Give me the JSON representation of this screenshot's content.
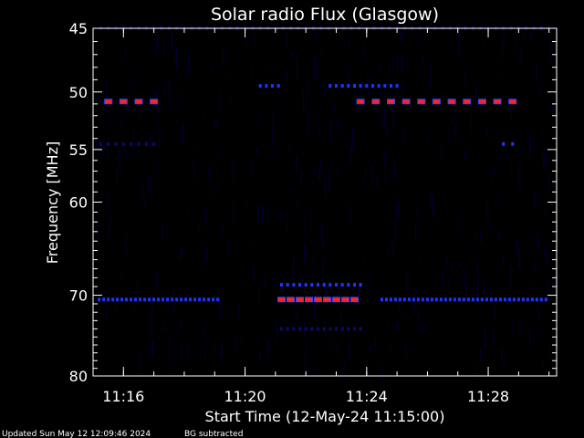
{
  "chart_data": {
    "type": "heatmap",
    "title": "Solar radio Flux (Glasgow)",
    "xlabel": "Start Time (12-May-24 11:15:00)",
    "ylabel": "Frequency [MHz]",
    "x_axis": {
      "unit": "minutes since 11:15:00",
      "range": [
        0,
        15.25
      ],
      "ticks": [
        {
          "value": 1,
          "label": "11:16"
        },
        {
          "value": 5,
          "label": "11:20"
        },
        {
          "value": 9,
          "label": "11:24"
        },
        {
          "value": 13,
          "label": "11:28"
        }
      ]
    },
    "y_axis": {
      "scale": "log",
      "inverted": true,
      "range": [
        45,
        80
      ],
      "ticks": [
        {
          "value": 45,
          "label": "45"
        },
        {
          "value": 50,
          "label": "50"
        },
        {
          "value": 55,
          "label": "55"
        },
        {
          "value": 60,
          "label": "60"
        },
        {
          "value": 70,
          "label": "70"
        },
        {
          "value": 80,
          "label": "80"
        }
      ],
      "minor_ticks": [
        46,
        47,
        48,
        49,
        51,
        52,
        53,
        54,
        56,
        57,
        58,
        59,
        61,
        62,
        63,
        64,
        65,
        66,
        67,
        68,
        69,
        71,
        72,
        73,
        74,
        75,
        76,
        77,
        78,
        79
      ]
    },
    "colors": {
      "background": "#000000",
      "axes": "#ffffff",
      "low": "#0a0a6e",
      "medium": "#2233ff",
      "high": "#ff2222"
    },
    "bands": [
      {
        "freq": 50.8,
        "intensity": "high",
        "x_start": 0.0,
        "x_end": 2.0,
        "step": 0.5
      },
      {
        "freq": 50.8,
        "intensity": "high",
        "x_start": 8.8,
        "x_end": 13.8,
        "step": 0.5
      },
      {
        "freq": 70.5,
        "intensity": "high",
        "x_start": 6.2,
        "x_end": 8.8,
        "step": 0.3
      },
      {
        "freq": 70.5,
        "intensity": "medium",
        "x_start": 0.2,
        "x_end": 4.2,
        "step": 0.15
      },
      {
        "freq": 70.5,
        "intensity": "medium",
        "x_start": 9.5,
        "x_end": 15.0,
        "step": 0.15
      },
      {
        "freq": 68.8,
        "intensity": "medium",
        "x_start": 6.2,
        "x_end": 8.8,
        "step": 0.2
      },
      {
        "freq": 49.5,
        "intensity": "medium",
        "x_start": 5.5,
        "x_end": 6.1,
        "step": 0.2
      },
      {
        "freq": 49.5,
        "intensity": "medium",
        "x_start": 7.8,
        "x_end": 10.0,
        "step": 0.2
      },
      {
        "freq": 54.5,
        "intensity": "low",
        "x_start": 0.0,
        "x_end": 2.0,
        "step": 0.25
      },
      {
        "freq": 54.5,
        "intensity": "medium",
        "x_start": 13.5,
        "x_end": 13.8,
        "step": 0.3
      },
      {
        "freq": 45.0,
        "intensity": "low",
        "x_start": 0.0,
        "x_end": 15.0,
        "step": 0.25
      },
      {
        "freq": 74.0,
        "intensity": "low",
        "x_start": 6.2,
        "x_end": 8.8,
        "step": 0.2
      }
    ]
  },
  "footer": {
    "updated": "Updated Sun May 12 12:09:46 2024",
    "note": "BG subtracted"
  }
}
